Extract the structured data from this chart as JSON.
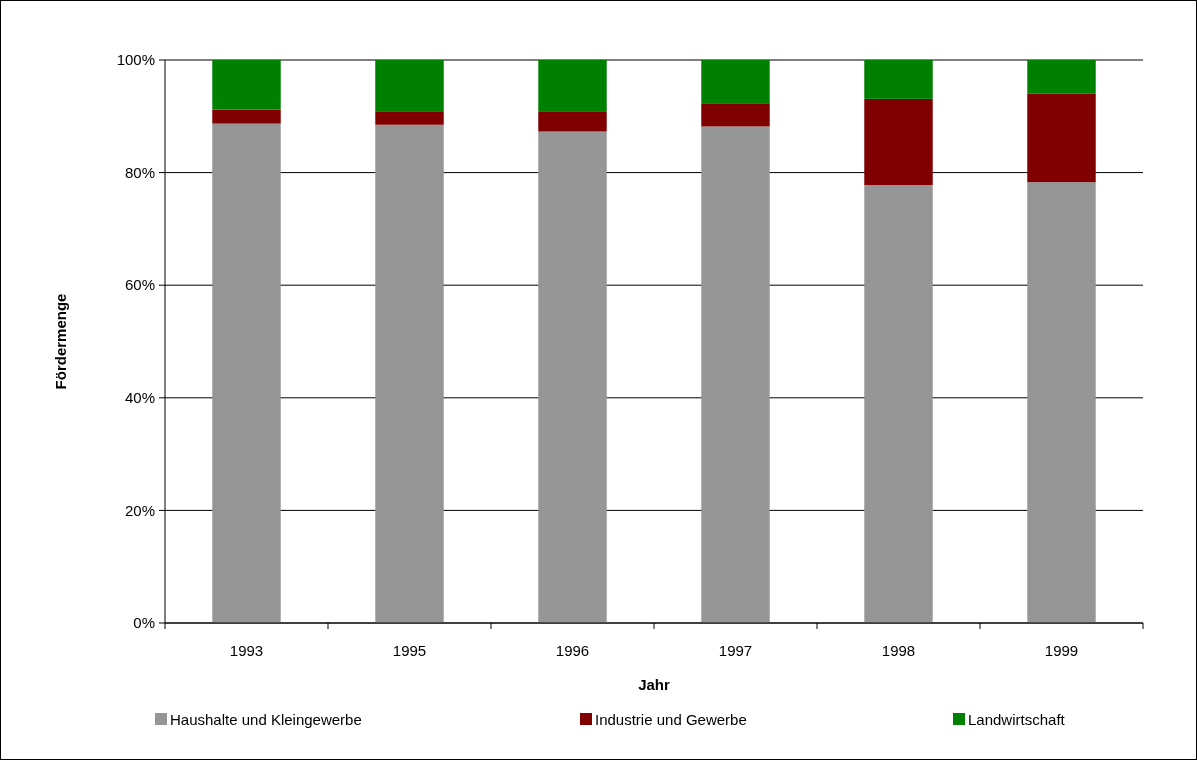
{
  "chart_data": {
    "type": "bar",
    "stacked": true,
    "xlabel": "Jahr",
    "ylabel": "Fördermenge",
    "categories": [
      "1993",
      "1995",
      "1996",
      "1997",
      "1998",
      "1999"
    ],
    "series": [
      {
        "name": "Haushalte und Kleingewerbe",
        "color": "#969696",
        "values": [
          88.7,
          88.5,
          87.3,
          88.2,
          77.8,
          78.3
        ]
      },
      {
        "name": "Industrie und Gewerbe",
        "color": "#800000",
        "values": [
          2.5,
          2.4,
          3.6,
          4.0,
          15.3,
          15.7
        ]
      },
      {
        "name": "Landwirtschaft",
        "color": "#008000",
        "values": [
          8.8,
          9.1,
          9.1,
          7.8,
          6.9,
          6.0
        ]
      }
    ],
    "ylim": [
      0,
      100
    ],
    "yticks": [
      {
        "value": 0,
        "label": "0%"
      },
      {
        "value": 20,
        "label": "20%"
      },
      {
        "value": 40,
        "label": "40%"
      },
      {
        "value": 60,
        "label": "60%"
      },
      {
        "value": 80,
        "label": "80%"
      },
      {
        "value": 100,
        "label": "100%"
      }
    ],
    "grid": "y",
    "legend": "bottom"
  }
}
